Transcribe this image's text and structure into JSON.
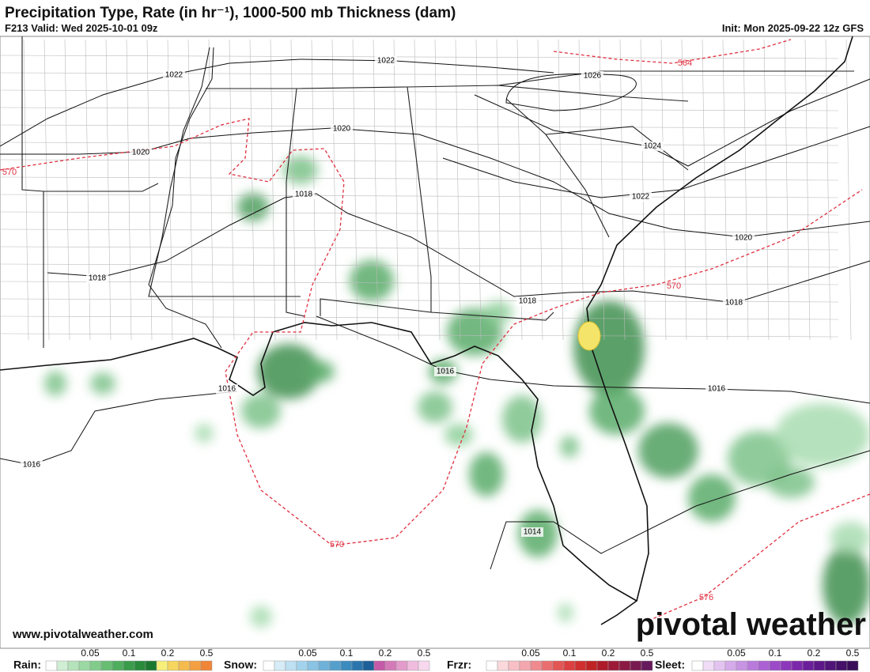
{
  "header": {
    "title": "Precipitation Type, Rate (in hr⁻¹), 1000-500 mb Thickness (dam)",
    "valid": "F213 Valid: Wed 2025-10-01 09z",
    "init": "Init: Mon 2025-09-22 12z GFS"
  },
  "isobar_labels": [
    "1022",
    "1022",
    "1026",
    "1020",
    "1020",
    "1024",
    "1018",
    "1022",
    "1020",
    "1018",
    "1018",
    "1018",
    "1016",
    "1016",
    "1016",
    "1016",
    "1014"
  ],
  "thickness_labels": [
    "570",
    "570",
    "570",
    "564",
    "576"
  ],
  "website": "www.pivotalweather.com",
  "brand": "pivotal weather",
  "legend": [
    {
      "label": "Rain:",
      "ticks": [
        0.05,
        0.1,
        0.2,
        0.5
      ]
    },
    {
      "label": "Snow:",
      "ticks": [
        0.05,
        0.1,
        0.2,
        0.5
      ]
    },
    {
      "label": "Frzr:",
      "ticks": [
        0.05,
        0.1,
        0.2,
        0.5
      ]
    },
    {
      "label": "Sleet:",
      "ticks": [
        0.05,
        0.1,
        0.2,
        0.5
      ]
    }
  ]
}
